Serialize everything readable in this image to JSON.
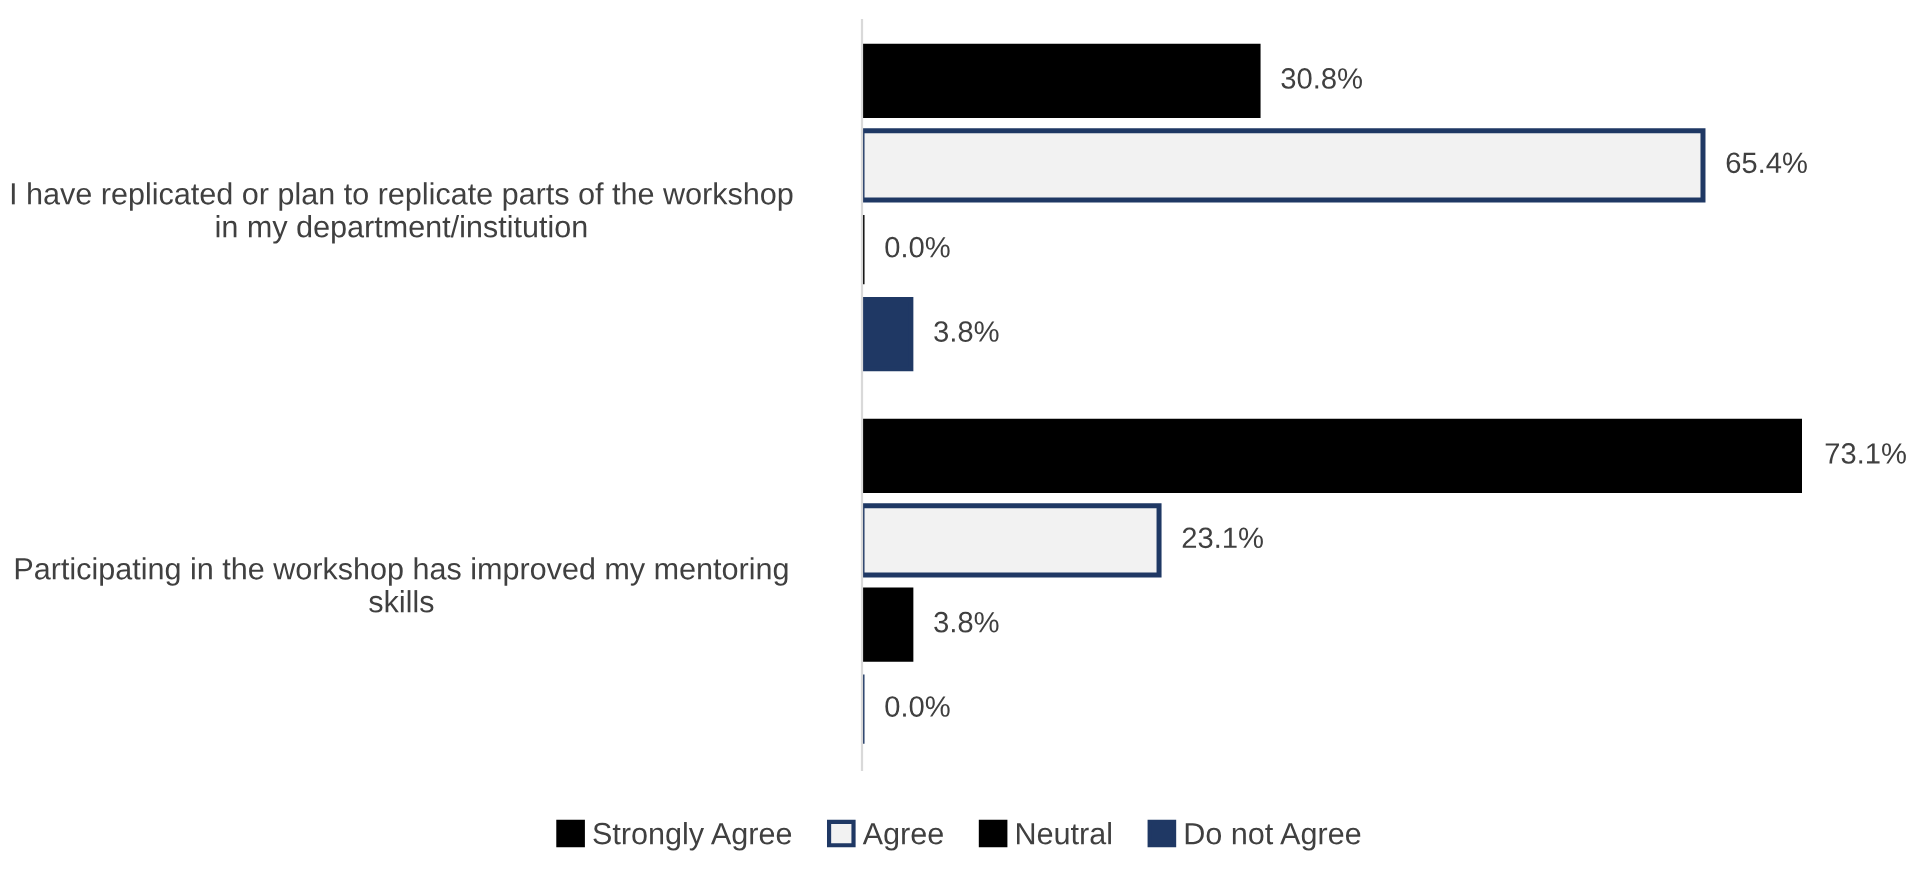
{
  "chart_data": {
    "type": "bar",
    "orientation": "horizontal",
    "categories": [
      "I have replicated or plan to replicate parts of the workshop in my department/institution",
      "Participating in the workshop has improved my mentoring skills"
    ],
    "series": [
      {
        "name": "Strongly Agree",
        "color": "#000000",
        "values": [
          30.8,
          73.1
        ],
        "value_labels": [
          "30.8%",
          "73.1%"
        ]
      },
      {
        "name": "Agree",
        "color": "#f2f2f2",
        "values": [
          65.4,
          23.1
        ],
        "value_labels": [
          "65.4%",
          "23.1%"
        ]
      },
      {
        "name": "Neutral",
        "color": "#000000",
        "values": [
          0.0,
          3.8
        ],
        "value_labels": [
          "0.0%",
          "3.8%"
        ]
      },
      {
        "name": "Do not Agree",
        "color": "#1f3864",
        "values": [
          3.8,
          0.0
        ],
        "value_labels": [
          "3.8%",
          "0.0%"
        ]
      }
    ],
    "legend": "bottom",
    "grid": false
  }
}
